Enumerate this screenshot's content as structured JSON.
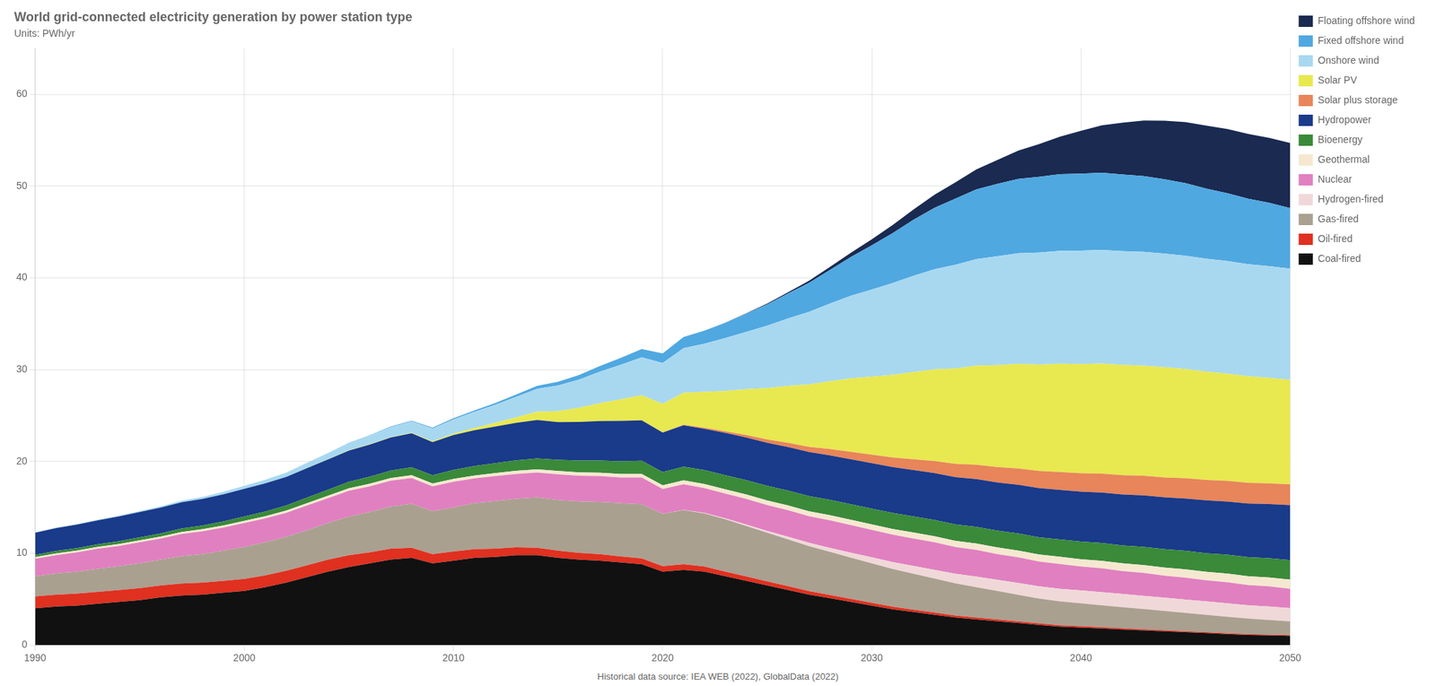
{
  "chart_data": {
    "type": "area",
    "title": "World grid-connected electricity generation by power station type",
    "subtitle": "Units: PWh/yr",
    "annotations": [
      "Historical data source: IEA WEB (2022), GlobalData (2022)"
    ],
    "stacked": true,
    "grid": true,
    "legend": "right",
    "x": [
      1990,
      1991,
      1992,
      1993,
      1994,
      1995,
      1996,
      1997,
      1998,
      1999,
      2000,
      2001,
      2002,
      2003,
      2004,
      2005,
      2006,
      2007,
      2008,
      2009,
      2010,
      2011,
      2012,
      2013,
      2014,
      2015,
      2016,
      2017,
      2018,
      2019,
      2020,
      2021,
      2022,
      2023,
      2024,
      2025,
      2026,
      2027,
      2028,
      2029,
      2030,
      2031,
      2032,
      2033,
      2034,
      2035,
      2036,
      2037,
      2038,
      2039,
      2040,
      2041,
      2042,
      2043,
      2044,
      2045,
      2046,
      2047,
      2048,
      2049,
      2050
    ],
    "xlim": [
      1990,
      2050
    ],
    "xticks": [
      1990,
      2000,
      2010,
      2020,
      2030,
      2040,
      2050
    ],
    "ylim": [
      0,
      65
    ],
    "yticks": [
      0,
      10,
      20,
      30,
      40,
      50,
      60
    ],
    "series": [
      {
        "name": "Coal-fired",
        "color": "#111111",
        "values": [
          4.0,
          4.2,
          4.3,
          4.5,
          4.7,
          4.9,
          5.2,
          5.4,
          5.5,
          5.7,
          5.9,
          6.3,
          6.8,
          7.4,
          8.0,
          8.5,
          8.9,
          9.3,
          9.5,
          8.9,
          9.2,
          9.5,
          9.6,
          9.8,
          9.8,
          9.5,
          9.3,
          9.2,
          9.0,
          8.8,
          8.0,
          8.2,
          8.0,
          7.5,
          7.0,
          6.5,
          6.0,
          5.5,
          5.1,
          4.7,
          4.3,
          3.9,
          3.6,
          3.3,
          3.0,
          2.8,
          2.6,
          2.4,
          2.2,
          2.0,
          1.9,
          1.8,
          1.7,
          1.6,
          1.5,
          1.4,
          1.3,
          1.2,
          1.1,
          1.05,
          1.0
        ]
      },
      {
        "name": "Oil-fired",
        "color": "#e03020",
        "values": [
          1.3,
          1.3,
          1.3,
          1.3,
          1.3,
          1.3,
          1.3,
          1.3,
          1.3,
          1.3,
          1.3,
          1.3,
          1.3,
          1.3,
          1.3,
          1.3,
          1.2,
          1.2,
          1.1,
          1.0,
          1.0,
          0.95,
          0.9,
          0.85,
          0.8,
          0.8,
          0.75,
          0.7,
          0.65,
          0.65,
          0.6,
          0.6,
          0.55,
          0.5,
          0.47,
          0.44,
          0.41,
          0.38,
          0.35,
          0.33,
          0.3,
          0.28,
          0.26,
          0.24,
          0.22,
          0.21,
          0.19,
          0.18,
          0.17,
          0.16,
          0.15,
          0.14,
          0.13,
          0.12,
          0.11,
          0.1,
          0.1,
          0.09,
          0.09,
          0.09,
          0.08
        ]
      },
      {
        "name": "Gas-fired",
        "color": "#aaa090",
        "values": [
          2.2,
          2.3,
          2.4,
          2.5,
          2.6,
          2.7,
          2.8,
          3.0,
          3.1,
          3.3,
          3.5,
          3.6,
          3.7,
          3.8,
          4.0,
          4.2,
          4.4,
          4.6,
          4.8,
          4.7,
          4.8,
          5.0,
          5.2,
          5.3,
          5.5,
          5.5,
          5.6,
          5.7,
          5.8,
          5.9,
          5.7,
          5.9,
          5.8,
          5.7,
          5.5,
          5.3,
          5.1,
          4.9,
          4.7,
          4.5,
          4.3,
          4.1,
          3.9,
          3.7,
          3.5,
          3.3,
          3.1,
          2.9,
          2.7,
          2.6,
          2.5,
          2.4,
          2.3,
          2.2,
          2.1,
          2.0,
          1.9,
          1.8,
          1.7,
          1.6,
          1.5
        ]
      },
      {
        "name": "Hydrogen-fired",
        "color": "#f0d8d8",
        "values": [
          0.0,
          0.0,
          0.0,
          0.0,
          0.0,
          0.0,
          0.0,
          0.0,
          0.0,
          0.0,
          0.0,
          0.0,
          0.0,
          0.0,
          0.0,
          0.0,
          0.0,
          0.0,
          0.0,
          0.0,
          0.0,
          0.0,
          0.0,
          0.0,
          0.0,
          0.0,
          0.0,
          0.0,
          0.0,
          0.0,
          0.0,
          0.02,
          0.05,
          0.1,
          0.15,
          0.2,
          0.28,
          0.36,
          0.44,
          0.54,
          0.65,
          0.75,
          0.85,
          0.95,
          1.05,
          1.15,
          1.22,
          1.28,
          1.33,
          1.37,
          1.4,
          1.42,
          1.43,
          1.44,
          1.45,
          1.45,
          1.45,
          1.45,
          1.45,
          1.45,
          1.45
        ]
      },
      {
        "name": "Nuclear",
        "color": "#e080c0",
        "values": [
          1.9,
          2.0,
          2.1,
          2.2,
          2.2,
          2.3,
          2.3,
          2.4,
          2.5,
          2.5,
          2.6,
          2.6,
          2.6,
          2.7,
          2.7,
          2.8,
          2.8,
          2.8,
          2.8,
          2.7,
          2.8,
          2.7,
          2.7,
          2.7,
          2.7,
          2.8,
          2.8,
          2.8,
          2.8,
          2.9,
          2.7,
          2.8,
          2.7,
          2.7,
          2.8,
          2.8,
          2.9,
          2.9,
          3.0,
          3.0,
          3.0,
          3.0,
          3.0,
          3.0,
          2.9,
          2.9,
          2.8,
          2.8,
          2.7,
          2.7,
          2.6,
          2.6,
          2.5,
          2.5,
          2.4,
          2.4,
          2.3,
          2.3,
          2.2,
          2.2,
          2.1
        ]
      },
      {
        "name": "Geothermal",
        "color": "#f5e8d0",
        "values": [
          0.18,
          0.19,
          0.19,
          0.2,
          0.2,
          0.21,
          0.21,
          0.22,
          0.22,
          0.23,
          0.24,
          0.24,
          0.25,
          0.26,
          0.26,
          0.27,
          0.28,
          0.29,
          0.3,
          0.3,
          0.31,
          0.32,
          0.33,
          0.34,
          0.35,
          0.36,
          0.37,
          0.38,
          0.39,
          0.4,
          0.41,
          0.42,
          0.44,
          0.46,
          0.48,
          0.5,
          0.52,
          0.54,
          0.56,
          0.58,
          0.6,
          0.62,
          0.64,
          0.66,
          0.68,
          0.7,
          0.72,
          0.74,
          0.76,
          0.78,
          0.8,
          0.82,
          0.84,
          0.86,
          0.88,
          0.9,
          0.92,
          0.94,
          0.96,
          0.98,
          1.0
        ]
      },
      {
        "name": "Bioenergy",
        "color": "#3a8a3a",
        "values": [
          0.25,
          0.26,
          0.28,
          0.29,
          0.31,
          0.33,
          0.36,
          0.38,
          0.41,
          0.44,
          0.48,
          0.52,
          0.56,
          0.61,
          0.66,
          0.72,
          0.77,
          0.82,
          0.87,
          0.91,
          0.97,
          1.03,
          1.08,
          1.13,
          1.18,
          1.23,
          1.28,
          1.33,
          1.38,
          1.43,
          1.45,
          1.5,
          1.52,
          1.55,
          1.57,
          1.6,
          1.62,
          1.65,
          1.67,
          1.7,
          1.72,
          1.74,
          1.76,
          1.78,
          1.8,
          1.82,
          1.84,
          1.86,
          1.88,
          1.9,
          1.92,
          1.94,
          1.96,
          1.98,
          2.0,
          2.02,
          2.04,
          2.06,
          2.08,
          2.1,
          2.12
        ]
      },
      {
        "name": "Hydropower",
        "color": "#1a3a8a",
        "values": [
          2.4,
          2.5,
          2.55,
          2.6,
          2.7,
          2.75,
          2.8,
          2.85,
          2.9,
          2.95,
          3.0,
          3.05,
          3.1,
          3.2,
          3.3,
          3.4,
          3.5,
          3.6,
          3.7,
          3.6,
          3.8,
          3.9,
          4.0,
          4.1,
          4.2,
          4.1,
          4.2,
          4.3,
          4.4,
          4.4,
          4.3,
          4.5,
          4.5,
          4.6,
          4.65,
          4.7,
          4.75,
          4.8,
          4.85,
          4.9,
          4.95,
          5.0,
          5.05,
          5.1,
          5.15,
          5.2,
          5.25,
          5.3,
          5.35,
          5.4,
          5.45,
          5.5,
          5.55,
          5.6,
          5.65,
          5.7,
          5.75,
          5.8,
          5.85,
          5.9,
          6.0
        ]
      },
      {
        "name": "Solar plus storage",
        "color": "#e8855a",
        "values": [
          0.0,
          0.0,
          0.0,
          0.0,
          0.0,
          0.0,
          0.0,
          0.0,
          0.0,
          0.0,
          0.0,
          0.0,
          0.0,
          0.0,
          0.0,
          0.0,
          0.0,
          0.0,
          0.0,
          0.0,
          0.0,
          0.0,
          0.0,
          0.0,
          0.0,
          0.0,
          0.0,
          0.0,
          0.0,
          0.0,
          0.02,
          0.06,
          0.12,
          0.18,
          0.26,
          0.36,
          0.46,
          0.57,
          0.68,
          0.8,
          0.92,
          1.05,
          1.18,
          1.31,
          1.44,
          1.57,
          1.68,
          1.78,
          1.87,
          1.94,
          2.0,
          2.05,
          2.1,
          2.14,
          2.17,
          2.2,
          2.22,
          2.24,
          2.25,
          2.25,
          2.25
        ]
      },
      {
        "name": "Solar PV",
        "color": "#e8e850",
        "values": [
          0.0,
          0.0,
          0.0,
          0.0,
          0.0,
          0.0,
          0.0,
          0.0,
          0.0,
          0.0,
          0.01,
          0.01,
          0.01,
          0.02,
          0.02,
          0.03,
          0.04,
          0.05,
          0.07,
          0.1,
          0.15,
          0.25,
          0.4,
          0.6,
          0.9,
          1.2,
          1.55,
          1.95,
          2.35,
          2.75,
          3.1,
          3.5,
          3.9,
          4.4,
          5.0,
          5.6,
          6.2,
          6.8,
          7.4,
          8.0,
          8.5,
          9.0,
          9.5,
          10.0,
          10.4,
          10.8,
          11.1,
          11.4,
          11.6,
          11.8,
          11.9,
          12.0,
          12.0,
          12.0,
          12.0,
          11.9,
          11.8,
          11.7,
          11.6,
          11.5,
          11.4
        ]
      },
      {
        "name": "Onshore wind",
        "color": "#a8d8f0",
        "values": [
          0.04,
          0.05,
          0.06,
          0.07,
          0.09,
          0.11,
          0.14,
          0.17,
          0.21,
          0.26,
          0.31,
          0.37,
          0.44,
          0.54,
          0.65,
          0.78,
          0.93,
          1.08,
          1.23,
          1.38,
          1.55,
          1.75,
          1.97,
          2.22,
          2.49,
          2.79,
          3.07,
          3.42,
          3.77,
          4.12,
          4.45,
          4.85,
          5.25,
          5.75,
          6.25,
          6.8,
          7.35,
          7.9,
          8.45,
          9.0,
          9.5,
          10.0,
          10.5,
          10.9,
          11.3,
          11.6,
          11.85,
          12.05,
          12.2,
          12.3,
          12.35,
          12.38,
          12.4,
          12.4,
          12.38,
          12.35,
          12.3,
          12.25,
          12.2,
          12.15,
          12.1
        ]
      },
      {
        "name": "Fixed offshore wind",
        "color": "#50a8e0",
        "values": [
          0.0,
          0.0,
          0.0,
          0.0,
          0.0,
          0.0,
          0.0,
          0.0,
          0.0,
          0.01,
          0.01,
          0.01,
          0.02,
          0.02,
          0.03,
          0.04,
          0.05,
          0.06,
          0.08,
          0.1,
          0.13,
          0.16,
          0.2,
          0.25,
          0.32,
          0.4,
          0.5,
          0.62,
          0.75,
          0.9,
          1.05,
          1.22,
          1.42,
          1.67,
          1.97,
          2.32,
          2.72,
          3.17,
          3.67,
          4.22,
          4.82,
          5.45,
          6.1,
          6.7,
          7.2,
          7.6,
          7.9,
          8.1,
          8.25,
          8.35,
          8.4,
          8.4,
          8.35,
          8.25,
          8.1,
          7.9,
          7.65,
          7.4,
          7.15,
          6.9,
          6.6
        ]
      },
      {
        "name": "Floating offshore wind",
        "color": "#1a2a50",
        "values": [
          0.0,
          0.0,
          0.0,
          0.0,
          0.0,
          0.0,
          0.0,
          0.0,
          0.0,
          0.0,
          0.0,
          0.0,
          0.0,
          0.0,
          0.0,
          0.0,
          0.0,
          0.0,
          0.0,
          0.0,
          0.0,
          0.0,
          0.0,
          0.0,
          0.0,
          0.0,
          0.0,
          0.0,
          0.0,
          0.0,
          0.0,
          0.0,
          0.01,
          0.02,
          0.04,
          0.08,
          0.14,
          0.22,
          0.33,
          0.47,
          0.65,
          0.87,
          1.13,
          1.43,
          1.78,
          2.17,
          2.6,
          3.07,
          3.57,
          4.1,
          4.65,
          5.18,
          5.65,
          6.05,
          6.38,
          6.65,
          6.85,
          6.98,
          7.05,
          7.08,
          7.1
        ]
      }
    ]
  }
}
